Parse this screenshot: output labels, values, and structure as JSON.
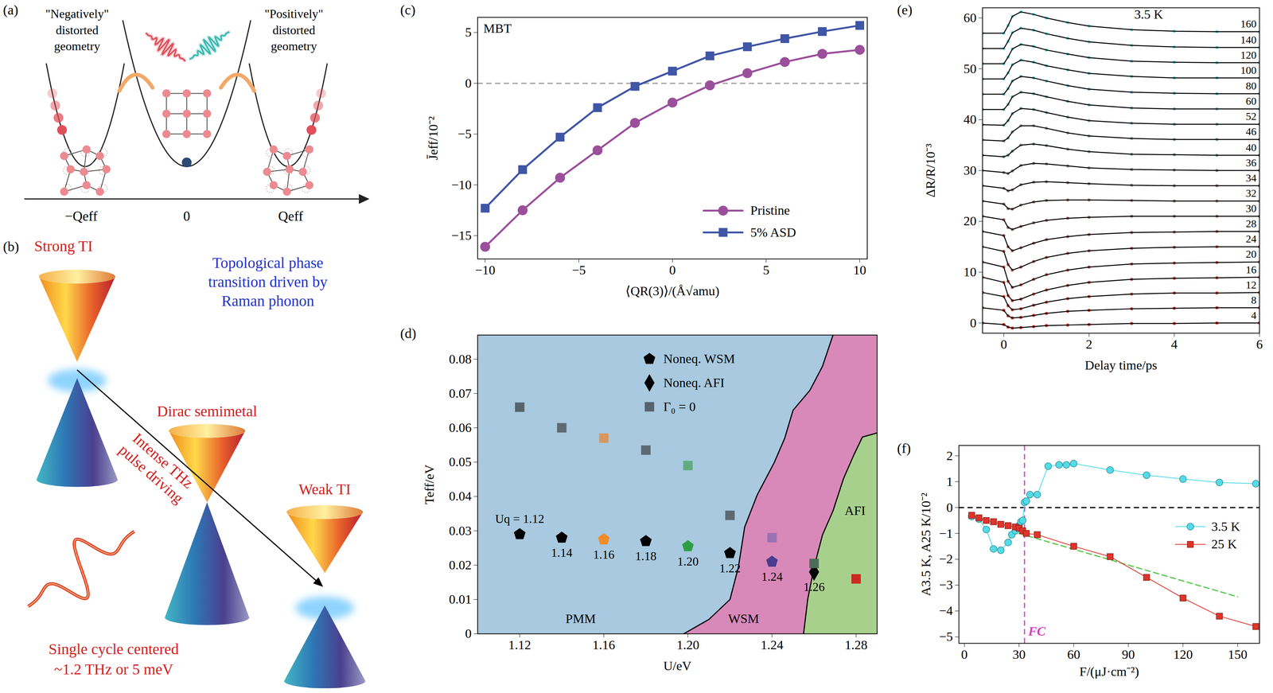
{
  "chart_data": [
    {
      "panel": "(c)",
      "type": "line",
      "annotation": "MBT",
      "x_label": "⟨QR(3)⟩/(Å√amu)",
      "y_label": "J̄eff/10⁻²",
      "x": [
        -10,
        -8,
        -6,
        -4,
        -2,
        0,
        2,
        4,
        6,
        8,
        10
      ],
      "xlim": [
        -10.4,
        10.4
      ],
      "xticks": [
        -10,
        -5,
        0,
        5,
        10
      ],
      "ylim": [
        -17.3,
        6.5
      ],
      "yticks": [
        -15,
        -10,
        -5,
        0,
        5
      ],
      "reference_lines": [
        {
          "y": 0,
          "color": "#999999",
          "line_style": "dashed"
        }
      ],
      "series": [
        {
          "name": "Pristine",
          "color": "#9b4f9b",
          "marker": "circle",
          "values": [
            -16.1,
            -12.5,
            -9.3,
            -6.6,
            -3.9,
            -1.9,
            -0.2,
            1.0,
            2.1,
            2.9,
            3.3
          ]
        },
        {
          "name": "5% ASD",
          "color": "#3f55a6",
          "marker": "square",
          "values": [
            -12.3,
            -8.5,
            -5.3,
            -2.4,
            -0.3,
            1.2,
            2.7,
            3.6,
            4.4,
            5.1,
            5.7
          ]
        }
      ],
      "legend": "bottom-right"
    },
    {
      "panel": "(d)",
      "type": "scatter",
      "x_label": "U/eV",
      "y_label": "Teff/eV",
      "xlim": [
        1.1,
        1.29
      ],
      "xticks": [
        1.12,
        1.16,
        {
          "value": 1.2,
          "label": "1.20"
        },
        1.24,
        1.28
      ],
      "ylim": [
        0,
        0.087
      ],
      "yticks": [
        0,
        0.01,
        0.02,
        0.03,
        0.04,
        0.05,
        0.06,
        0.07,
        0.08
      ],
      "regions": [
        {
          "name": "PMM",
          "color": "#a8c9df"
        },
        {
          "name": "WSM",
          "color": "#d889b9",
          "boundary": {
            "x": [
              1.198,
              1.21,
              1.22,
              1.224,
              1.227,
              1.233,
              1.241,
              1.246,
              1.25,
              1.258,
              1.264,
              1.269
            ],
            "y": [
              0,
              0.0042,
              0.01,
              0.0194,
              0.0311,
              0.0405,
              0.0498,
              0.0569,
              0.0651,
              0.0709,
              0.0779,
              0.087
            ]
          }
        },
        {
          "name": "AFI",
          "color": "#a8d08d",
          "boundary": {
            "x": [
              1.255,
              1.257,
              1.26,
              1.264,
              1.269,
              1.274,
              1.279,
              1.283,
              1.29
            ],
            "y": [
              0,
              0.0101,
              0.0194,
              0.0288,
              0.0358,
              0.0452,
              0.0522,
              0.0573,
              0.0585
            ]
          }
        }
      ],
      "series": [
        {
          "name": "Noneq. WSM",
          "marker": "pentagon",
          "color": "#000000",
          "x": [
            1.12,
            1.14,
            1.16,
            1.18,
            1.2,
            1.22,
            1.24
          ],
          "values": [
            0.029,
            0.028,
            0.0275,
            0.027,
            0.0255,
            0.0235,
            0.021
          ],
          "colors": [
            "#000000",
            "#000000",
            "#f28c28",
            "#000000",
            "#2e9e44",
            "#000000",
            "#4a3b8f"
          ],
          "labels": [
            "Uq = 1.12",
            "1.14",
            "1.16",
            "1.18",
            "1.20",
            "1.22",
            "1.24"
          ]
        },
        {
          "name": "Noneq. AFI",
          "marker": "diamond",
          "color": "#000000",
          "x": [
            1.26
          ],
          "values": [
            0.018
          ],
          "colors": [
            "#000000"
          ],
          "labels": [
            "1.26"
          ]
        },
        {
          "name": "Γ₀ = 0",
          "marker": "square",
          "color": "#56636d",
          "x": [
            1.12,
            1.14,
            1.16,
            1.18,
            1.2,
            1.22,
            1.24,
            1.26,
            1.28
          ],
          "values": [
            0.066,
            0.06,
            0.057,
            0.0535,
            0.049,
            0.0345,
            0.028,
            0.0205,
            0.016
          ],
          "colors": [
            "#56636d",
            "#5d6a74",
            "#d9975e",
            "#5d6a74",
            "#62ad80",
            "#5d6a74",
            "#9b72b2",
            "#4e6c5a",
            "#cc2a1e"
          ]
        }
      ],
      "legend": "top"
    },
    {
      "panel": "(e)",
      "type": "line",
      "annotation": "3.5 K",
      "x_label": "Delay time/ps",
      "y_label": "ΔR/R/10⁻³",
      "x": [
        -0.5,
        0,
        0.1,
        0.2,
        0.4,
        0.7,
        1,
        1.5,
        2,
        3,
        4,
        5,
        6
      ],
      "xlim": [
        -0.5,
        6
      ],
      "xticks": [
        0,
        2,
        4,
        6
      ],
      "ylim": [
        -2,
        62
      ],
      "yticks": [
        0,
        10,
        20,
        30,
        40,
        50,
        60
      ],
      "series": [
        {
          "name": "160",
          "color": "#5fd8e6",
          "values": [
            57,
            57,
            58.5,
            60.3,
            61.2,
            60.7,
            60,
            59.1,
            58.4,
            57.7,
            57.4,
            57.3,
            57.3
          ]
        },
        {
          "name": "140",
          "color": "#5fd2df",
          "values": [
            54,
            54,
            55.4,
            57.1,
            58,
            57.6,
            56.9,
            56,
            55.3,
            54.6,
            54.3,
            54.2,
            54.2
          ]
        },
        {
          "name": "120",
          "color": "#62ccd8",
          "values": [
            51,
            51,
            52.3,
            53.9,
            54.8,
            54.4,
            53.7,
            52.9,
            52.2,
            51.5,
            51.3,
            51.2,
            51.2
          ]
        },
        {
          "name": "100",
          "color": "#66c5d0",
          "values": [
            48,
            48,
            49.2,
            50.8,
            51.7,
            51.3,
            50.6,
            49.8,
            49.1,
            48.5,
            48.2,
            48.2,
            48.2
          ]
        },
        {
          "name": "80",
          "color": "#6bbec7",
          "values": [
            45,
            45,
            46.1,
            47.6,
            48.5,
            48.2,
            47.6,
            46.7,
            46,
            45.4,
            45.2,
            45.1,
            45.1
          ]
        },
        {
          "name": "60",
          "color": "#71b6bd",
          "values": [
            42,
            42,
            43,
            44.5,
            45.4,
            45.1,
            44.5,
            43.6,
            42.9,
            42.3,
            42.1,
            42.1,
            42.1
          ]
        },
        {
          "name": "52",
          "color": "#78aeb2",
          "values": [
            39,
            38.9,
            39.8,
            41.2,
            42.2,
            42,
            41.4,
            40.5,
            39.8,
            39.3,
            39.1,
            39.1,
            39.1
          ]
        },
        {
          "name": "46",
          "color": "#80a5a7",
          "values": [
            36,
            35.8,
            36.4,
            37.6,
            38.8,
            38.8,
            38.3,
            37.4,
            36.8,
            36.3,
            36.1,
            36.1,
            36.1
          ]
        },
        {
          "name": "40",
          "color": "#889c9b",
          "values": [
            33,
            32.7,
            33,
            33.8,
            35,
            35.2,
            34.9,
            34.2,
            33.7,
            33.2,
            33.1,
            33,
            33
          ]
        },
        {
          "name": "36",
          "color": "#90928f",
          "values": [
            30,
            29.6,
            29.4,
            29.9,
            31,
            31.4,
            31.3,
            30.9,
            30.5,
            30.2,
            30.1,
            30,
            30
          ]
        },
        {
          "name": "34",
          "color": "#988884",
          "values": [
            27,
            26.5,
            26,
            26.2,
            27.2,
            27.7,
            27.8,
            27.6,
            27.4,
            27.1,
            27,
            27,
            27
          ]
        },
        {
          "name": "32",
          "color": "#a07f78",
          "values": [
            24,
            23.4,
            22.5,
            22.4,
            23.2,
            23.8,
            24.1,
            24.2,
            24.2,
            24.1,
            24,
            24,
            24
          ]
        },
        {
          "name": "30",
          "color": "#a8756c",
          "values": [
            21,
            20.3,
            18.8,
            18.4,
            19,
            19.7,
            20.2,
            20.6,
            20.8,
            21,
            21,
            21,
            21
          ]
        },
        {
          "name": "28",
          "color": "#b06b60",
          "values": [
            18,
            17.2,
            15,
            14.2,
            14.8,
            15.7,
            16.4,
            17,
            17.4,
            17.8,
            17.9,
            18,
            18
          ]
        },
        {
          "name": "24",
          "color": "#b86154",
          "values": [
            15,
            14.1,
            11.5,
            10.4,
            11,
            12.1,
            12.9,
            13.7,
            14.2,
            14.7,
            14.9,
            15,
            15
          ]
        },
        {
          "name": "20",
          "color": "#c05748",
          "values": [
            12,
            11,
            8.2,
            7,
            7.5,
            8.6,
            9.5,
            10.4,
            11,
            11.6,
            11.8,
            11.9,
            12
          ]
        },
        {
          "name": "16",
          "color": "#c84d3c",
          "values": [
            9,
            8,
            5.4,
            4.4,
            4.7,
            5.7,
            6.5,
            7.4,
            8,
            8.6,
            8.8,
            8.9,
            9
          ]
        },
        {
          "name": "12",
          "color": "#d04331",
          "values": [
            6,
            5.2,
            3.4,
            2.6,
            2.8,
            3.5,
            4.1,
            4.8,
            5.2,
            5.7,
            5.9,
            5.9,
            6
          ]
        },
        {
          "name": "8",
          "color": "#d83925",
          "values": [
            3,
            2.5,
            1.4,
            1,
            1.1,
            1.5,
            1.9,
            2.3,
            2.5,
            2.8,
            2.9,
            3,
            3
          ]
        },
        {
          "name": "4",
          "color": "#e02f1a",
          "values": [
            0,
            -0.3,
            -0.8,
            -1,
            -0.9,
            -0.7,
            -0.5,
            -0.4,
            -0.3,
            -0.1,
            -0.1,
            0,
            0
          ]
        }
      ]
    },
    {
      "panel": "(f)",
      "type": "line",
      "x_label": "F/(μJ·cm⁻²)",
      "y_label": "A3.5 K, A25 K/10⁻²",
      "xlim": [
        -3,
        162
      ],
      "xticks": [
        0,
        30,
        60,
        90,
        120,
        150
      ],
      "ylim": [
        -5.25,
        2.4
      ],
      "yticks": [
        -5,
        -4,
        -3,
        -2,
        -1,
        0,
        1,
        2
      ],
      "reference_lines": [
        {
          "y": 0,
          "color": "#000000",
          "line_style": "dashed"
        },
        {
          "x": 33,
          "color": "#d63fc4",
          "line_style": "dashed",
          "label": "FC"
        }
      ],
      "fit_line": {
        "x": [
          30,
          150
        ],
        "values": [
          -1.0,
          -3.45
        ],
        "color": "#52c84a",
        "line_style": "dashed"
      },
      "series": [
        {
          "name": "3.5 K",
          "color": "#52dbe8",
          "marker": "circle",
          "x": [
            4,
            8,
            12,
            16,
            20,
            24,
            26,
            28,
            30,
            31,
            32,
            33,
            34,
            36,
            40,
            46,
            52,
            56,
            60,
            80,
            100,
            120,
            140,
            160
          ],
          "values": [
            -0.35,
            -0.45,
            -0.85,
            -1.6,
            -1.65,
            -1.35,
            -1.05,
            -0.9,
            -0.7,
            -0.55,
            -0.5,
            0.2,
            0.25,
            0.5,
            0.5,
            1.6,
            1.65,
            1.65,
            1.7,
            1.45,
            1.25,
            1.1,
            0.97,
            0.92
          ]
        },
        {
          "name": "25 K",
          "color": "#e0342a",
          "marker": "square",
          "x": [
            4,
            8,
            12,
            16,
            20,
            24,
            28,
            30,
            32,
            34,
            40,
            60,
            80,
            100,
            120,
            140,
            160
          ],
          "values": [
            -0.3,
            -0.4,
            -0.5,
            -0.55,
            -0.65,
            -0.7,
            -0.75,
            -0.8,
            -0.9,
            -1.0,
            -1.05,
            -1.5,
            -1.9,
            -2.7,
            -3.5,
            -4.2,
            -4.6
          ]
        }
      ],
      "legend": "right"
    }
  ],
  "diagrams": {
    "a": {
      "label": "(a)",
      "left_caption": [
        "\"Negatively\"",
        "distorted",
        "geometry"
      ],
      "right_caption": [
        "\"Positively\"",
        "distorted",
        "geometry"
      ],
      "axis_labels": [
        "−Qeff",
        "0",
        "Qeff"
      ]
    },
    "b": {
      "label": "(b)",
      "phase_labels": [
        "Strong TI",
        "Dirac semimetal",
        "Weak TI"
      ],
      "title_lines": [
        "Topological phase",
        "transition driven by",
        "Raman phonon"
      ],
      "arrow_label_lines": [
        "Intense THz",
        "pulse driving"
      ],
      "pulse_caption_lines": [
        "Single cycle centered",
        "~1.2 THz or 5 meV"
      ]
    }
  }
}
